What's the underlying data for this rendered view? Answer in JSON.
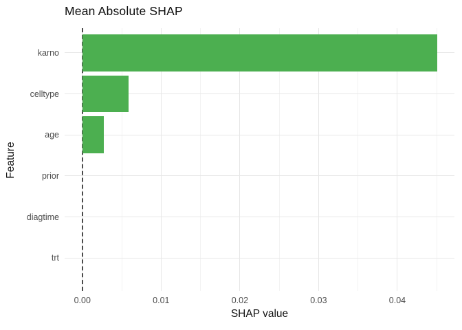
{
  "title": "Mean Absolute SHAP",
  "colors": {
    "bar": "#4CAF50",
    "grid_major": "#e7e7e7",
    "grid_minor": "#f2f2f2",
    "zero_line": "#4a4a4a",
    "tick_text": "#4d4d4d",
    "axis_title_text": "#111111",
    "background": "#ffffff"
  },
  "chart_data": {
    "type": "bar",
    "orientation": "horizontal",
    "title": "Mean Absolute SHAP",
    "xlabel": "SHAP value",
    "ylabel": "Feature",
    "categories": [
      "karno",
      "celltype",
      "age",
      "prior",
      "diagtime",
      "trt"
    ],
    "values": [
      0.0451,
      0.0059,
      0.0027,
      0,
      0,
      0
    ],
    "x_ticks": [
      0,
      0.01,
      0.02,
      0.03,
      0.04
    ],
    "x_tick_labels": [
      "0.00",
      "0.01",
      "0.02",
      "0.03",
      "0.04"
    ],
    "x_minor_ticks": [
      0.005,
      0.015,
      0.025,
      0.035,
      0.045
    ],
    "xlim": [
      -0.00225,
      0.04725
    ],
    "grid": true,
    "legend": null,
    "zero_reference_line": {
      "x": 0,
      "style": "dashed"
    },
    "bar_relative_width": 0.9,
    "category_axis_expansion": 0.6
  }
}
